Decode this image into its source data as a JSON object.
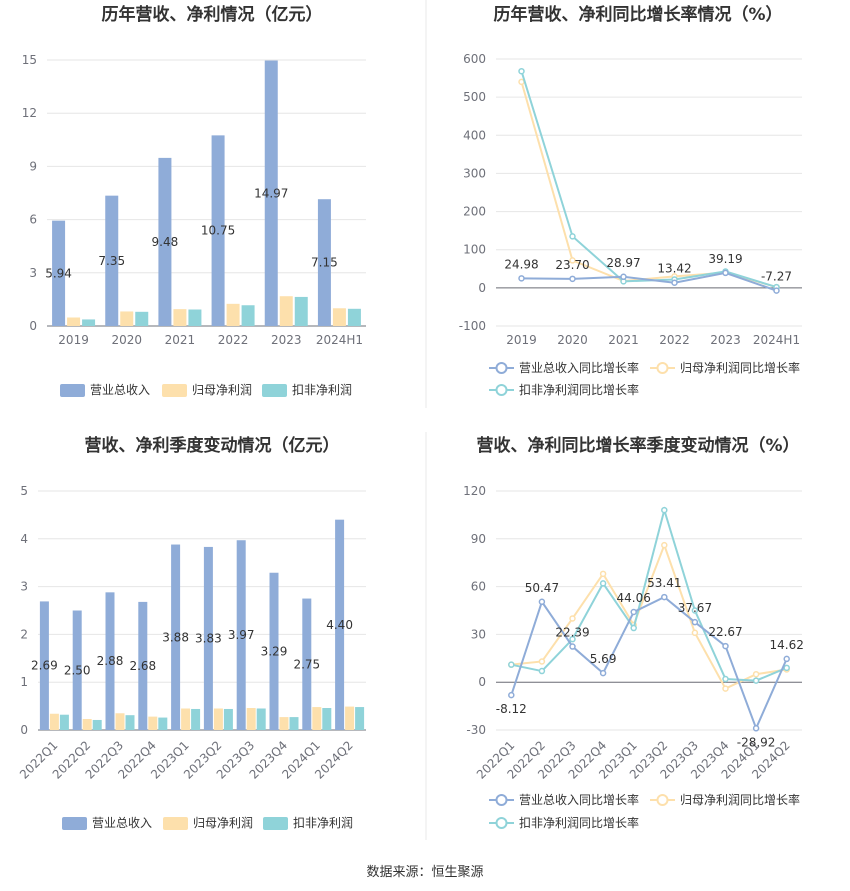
{
  "colors": {
    "revenue": "#8facd8",
    "parent_profit": "#fde0ac",
    "deducted_profit": "#8fd3d9",
    "grid": "#e6e6e6",
    "axis": "#6e7079",
    "divider": "#e8e8e8"
  },
  "source": "数据来源：恒生聚源",
  "chart_data": [
    {
      "type": "bar",
      "title": "历年营收、净利情况（亿元）",
      "categories": [
        "2019",
        "2020",
        "2021",
        "2022",
        "2023",
        "2024H1"
      ],
      "ylim": [
        0,
        15
      ],
      "yticks": [
        "0",
        "3",
        "6",
        "9",
        "12",
        "15"
      ],
      "grid": true,
      "legend_position": "bottom",
      "label_series": 0,
      "series": [
        {
          "name": "营业总收入",
          "values": [
            5.94,
            7.35,
            9.48,
            10.75,
            14.97,
            7.15
          ],
          "labels": [
            "5.94",
            "7.35",
            "9.48",
            "10.75",
            "14.97",
            "7.15"
          ]
        },
        {
          "name": "归母净利润",
          "values": [
            0.48,
            0.82,
            0.95,
            1.25,
            1.68,
            1.0
          ]
        },
        {
          "name": "扣非净利润",
          "values": [
            0.37,
            0.8,
            0.93,
            1.17,
            1.64,
            0.97
          ]
        }
      ]
    },
    {
      "type": "line",
      "title": "历年营收、净利同比增长率情况（%）",
      "categories": [
        "2019",
        "2020",
        "2021",
        "2022",
        "2023",
        "2024H1"
      ],
      "ylim": [
        -100,
        600
      ],
      "yticks": [
        "-100",
        "0",
        "100",
        "200",
        "300",
        "400",
        "500",
        "600"
      ],
      "grid": true,
      "legend_position": "bottom",
      "label_series": 0,
      "series": [
        {
          "name": "营业总收入同比增长率",
          "values": [
            24.98,
            23.7,
            28.97,
            13.42,
            39.19,
            -7.27
          ],
          "labels": [
            "24.98",
            "23.70",
            "28.97",
            "13.42",
            "39.19",
            "-7.27"
          ]
        },
        {
          "name": "归母净利润同比增长率",
          "values": [
            540,
            72,
            18,
            30,
            40,
            2
          ]
        },
        {
          "name": "扣非净利润同比增长率",
          "values": [
            568,
            135,
            17,
            22,
            43,
            2
          ]
        }
      ]
    },
    {
      "type": "bar",
      "title": "营收、净利季度变动情况（亿元）",
      "categories": [
        "2022Q1",
        "2022Q2",
        "2022Q3",
        "2022Q4",
        "2023Q1",
        "2023Q2",
        "2023Q3",
        "2023Q4",
        "2024Q1",
        "2024Q2"
      ],
      "ylim": [
        0,
        5
      ],
      "yticks": [
        "0",
        "1",
        "2",
        "3",
        "4",
        "5"
      ],
      "grid": true,
      "legend_position": "bottom",
      "label_series": 0,
      "series": [
        {
          "name": "营业总收入",
          "values": [
            2.69,
            2.5,
            2.88,
            2.68,
            3.88,
            3.83,
            3.97,
            3.29,
            2.75,
            4.4
          ],
          "labels": [
            "2.69",
            "2.50",
            "2.88",
            "2.68",
            "3.88",
            "3.83",
            "3.97",
            "3.29",
            "2.75",
            "4.40"
          ]
        },
        {
          "name": "归母净利润",
          "values": [
            0.34,
            0.23,
            0.35,
            0.28,
            0.45,
            0.45,
            0.46,
            0.27,
            0.48,
            0.49
          ]
        },
        {
          "name": "扣非净利润",
          "values": [
            0.32,
            0.21,
            0.31,
            0.26,
            0.44,
            0.44,
            0.45,
            0.27,
            0.46,
            0.48
          ]
        }
      ]
    },
    {
      "type": "line",
      "title": "营收、净利同比增长率季度变动情况（%）",
      "categories": [
        "2022Q1",
        "2022Q2",
        "2022Q3",
        "2022Q4",
        "2023Q1",
        "2023Q2",
        "2023Q3",
        "2023Q4",
        "2024Q1",
        "2024Q2"
      ],
      "ylim": [
        -30,
        120
      ],
      "yticks": [
        "-30",
        "0",
        "30",
        "60",
        "90",
        "120"
      ],
      "grid": true,
      "legend_position": "bottom",
      "label_series": 0,
      "series": [
        {
          "name": "营业总收入同比增长率",
          "values": [
            -8.12,
            50.47,
            22.39,
            5.69,
            44.06,
            53.41,
            37.67,
            22.67,
            -28.92,
            14.62
          ],
          "labels": [
            "-8.12",
            "50.47",
            "22.39",
            "5.69",
            "44.06",
            "53.41",
            "37.67",
            "22.67",
            "-28.92",
            "14.62"
          ]
        },
        {
          "name": "归母净利润同比增长率",
          "values": [
            11,
            13,
            40,
            68,
            36,
            86,
            31,
            -4,
            5,
            8
          ]
        },
        {
          "name": "扣非净利润同比增长率",
          "values": [
            11,
            7,
            27,
            62,
            34,
            108,
            45,
            2,
            1,
            9
          ]
        }
      ]
    }
  ]
}
